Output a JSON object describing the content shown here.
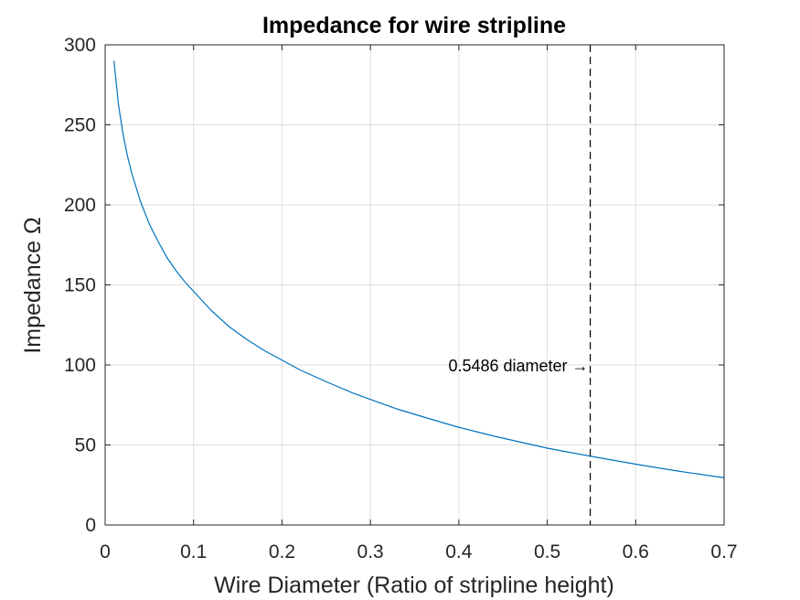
{
  "chart_data": {
    "type": "line",
    "title": "Impedance for wire stripline",
    "xlabel": "Wire Diameter (Ratio of stripline height)",
    "ylabel": "Impedance Ω",
    "xlim": [
      0,
      0.7
    ],
    "ylim": [
      0,
      300
    ],
    "xticks": [
      0,
      0.1,
      0.2,
      0.3,
      0.4,
      0.5,
      0.6,
      0.7
    ],
    "xtick_labels": [
      "0",
      "0.1",
      "0.2",
      "0.3",
      "0.4",
      "0.5",
      "0.6",
      "0.7"
    ],
    "yticks": [
      0,
      50,
      100,
      150,
      200,
      250,
      300
    ],
    "ytick_labels": [
      "0",
      "50",
      "100",
      "150",
      "200",
      "250",
      "300"
    ],
    "grid": true,
    "series": [
      {
        "color": "#0072bd",
        "x": [
          0.01,
          0.015,
          0.02,
          0.025,
          0.03,
          0.04,
          0.05,
          0.06,
          0.07,
          0.08,
          0.09,
          0.1,
          0.12,
          0.14,
          0.16,
          0.18,
          0.2,
          0.22,
          0.25,
          0.28,
          0.3,
          0.33,
          0.36,
          0.4,
          0.44,
          0.48,
          0.5,
          0.5486,
          0.6,
          0.65,
          0.7
        ],
        "y": [
          290,
          263,
          245,
          231,
          220,
          202,
          188,
          177,
          167,
          159,
          152,
          146,
          134,
          124,
          116,
          109,
          103,
          97,
          89.5,
          82.5,
          78.5,
          72.5,
          67.5,
          61,
          55.5,
          50.5,
          48,
          43,
          38,
          33.5,
          29.5
        ]
      }
    ],
    "marker_line": {
      "x": 0.5486,
      "label": "0.5486 diameter →",
      "label_y": 100
    }
  }
}
